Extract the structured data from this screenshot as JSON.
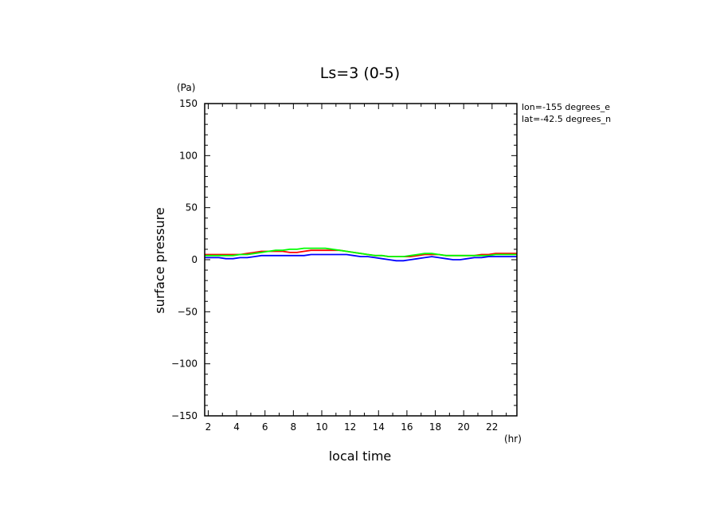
{
  "chart_data": {
    "type": "line",
    "title": "Ls=3 (0-5)",
    "xlabel": "local time",
    "ylabel": "surface pressure",
    "x_unit": "(hr)",
    "y_unit": "(Pa)",
    "xlim": [
      1.75,
      23.75
    ],
    "ylim": [
      -150,
      150
    ],
    "x_ticks": [
      2,
      4,
      6,
      8,
      10,
      12,
      14,
      16,
      18,
      20,
      22
    ],
    "y_ticks": [
      150,
      100,
      50,
      0,
      -50,
      -100,
      -150
    ],
    "y_tick_labels": [
      "150",
      "100",
      "50",
      "0",
      "−50",
      "−100",
      "−150"
    ],
    "annotations": [
      "lon=-155 degrees_e",
      "lat=-42.5 degrees_n"
    ],
    "grid": false,
    "x": [
      1.75,
      2.25,
      2.75,
      3.25,
      3.75,
      4.25,
      4.75,
      5.25,
      5.75,
      6.25,
      6.75,
      7.25,
      7.75,
      8.25,
      8.75,
      9.25,
      9.75,
      10.25,
      10.75,
      11.25,
      11.75,
      12.25,
      12.75,
      13.25,
      13.75,
      14.25,
      14.75,
      15.25,
      15.75,
      16.25,
      16.75,
      17.25,
      17.75,
      18.25,
      18.75,
      19.25,
      19.75,
      20.25,
      20.75,
      21.25,
      21.75,
      22.25,
      22.75,
      23.25,
      23.75
    ],
    "series": [
      {
        "color": "#ff0000",
        "values": [
          5,
          5,
          5,
          5,
          5,
          5,
          6,
          7,
          8,
          8,
          8,
          8,
          7,
          7,
          8,
          9,
          9,
          9,
          9,
          9,
          8,
          7,
          6,
          5,
          4,
          4,
          3,
          3,
          3,
          3,
          4,
          5,
          5,
          5,
          4,
          4,
          4,
          4,
          4,
          5,
          5,
          6,
          6,
          6,
          6
        ]
      },
      {
        "color": "#00ff00",
        "values": [
          4,
          4,
          4,
          4,
          4,
          5,
          5,
          6,
          7,
          8,
          9,
          9,
          10,
          10,
          11,
          11,
          11,
          11,
          10,
          9,
          8,
          7,
          6,
          5,
          4,
          4,
          3,
          3,
          3,
          4,
          5,
          6,
          6,
          5,
          4,
          4,
          4,
          4,
          4,
          4,
          4,
          5,
          5,
          5,
          5
        ]
      },
      {
        "color": "#0000ff",
        "values": [
          2,
          2,
          2,
          1,
          1,
          2,
          2,
          3,
          4,
          4,
          4,
          4,
          4,
          4,
          4,
          5,
          5,
          5,
          5,
          5,
          5,
          4,
          3,
          3,
          2,
          1,
          0,
          -1,
          -1,
          0,
          1,
          2,
          3,
          2,
          1,
          0,
          0,
          1,
          2,
          2,
          3,
          3,
          3,
          3,
          3
        ]
      }
    ]
  }
}
